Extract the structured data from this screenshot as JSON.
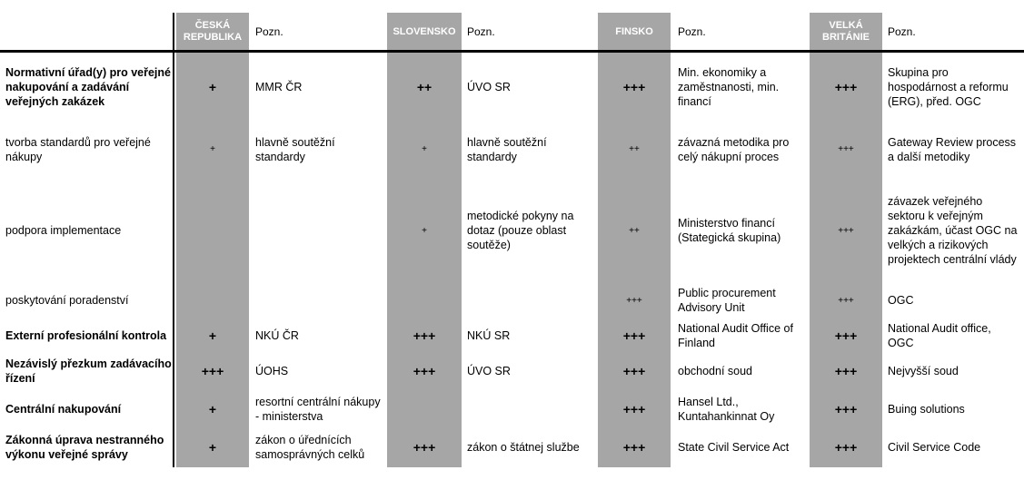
{
  "headers": {
    "countries": [
      "ČESKÁ REPUBLIKA",
      "SLOVENSKO",
      "FINSKO",
      "VELKÁ BRITÁNIE"
    ],
    "note": "Pozn."
  },
  "rows": [
    {
      "label": "Normativní úřad(y) pro veřejné nakupování a zadávání veřejných zakázek",
      "bold": true,
      "cells": [
        {
          "mark": "+",
          "note": "MMR ČR"
        },
        {
          "mark": "++",
          "note": "ÚVO SR"
        },
        {
          "mark": "+++",
          "note": "Min. ekonomiky a zaměstnanosti, min. financí"
        },
        {
          "mark": "+++",
          "note": "Skupina pro hospodárnost a reformu (ERG), před. OGC"
        }
      ]
    },
    {
      "label": "tvorba standardů pro veřejné nákupy",
      "bold": false,
      "cells": [
        {
          "mark": "+",
          "note": "hlavně soutěžní standardy"
        },
        {
          "mark": "+",
          "note": "hlavně soutěžní standardy"
        },
        {
          "mark": "++",
          "note": "závazná metodika pro celý nákupní proces"
        },
        {
          "mark": "+++",
          "note": "Gateway Review process a další metodiky"
        }
      ]
    },
    {
      "label": "podpora implementace",
      "bold": false,
      "cells": [
        {
          "mark": "",
          "note": ""
        },
        {
          "mark": "+",
          "note": "metodické pokyny na dotaz (pouze oblast soutěže)"
        },
        {
          "mark": "++",
          "note": "Ministerstvo financí (Stategická skupina)"
        },
        {
          "mark": "+++",
          "note": "závazek veřejného sektoru k veřejným zakázkám, účast OGC na velkých a rizikových projektech centrální vlády"
        }
      ]
    },
    {
      "label": "poskytování poradenství",
      "bold": false,
      "cells": [
        {
          "mark": "",
          "note": ""
        },
        {
          "mark": "",
          "note": ""
        },
        {
          "mark": "+++",
          "note": "Public procurement Advisory Unit"
        },
        {
          "mark": "+++",
          "note": "OGC"
        }
      ]
    },
    {
      "label": "Externí profesionální kontrola",
      "bold": true,
      "cells": [
        {
          "mark": "+",
          "note": "NKÚ ČR"
        },
        {
          "mark": "+++",
          "note": "NKÚ SR"
        },
        {
          "mark": "+++",
          "note": "National Audit Office of Finland"
        },
        {
          "mark": "+++",
          "note": "National Audit office, OGC"
        }
      ]
    },
    {
      "label": "Nezávislý přezkum zadávacího řízení",
      "bold": true,
      "cells": [
        {
          "mark": "+++",
          "note": "ÚOHS"
        },
        {
          "mark": "+++",
          "note": "ÚVO SR"
        },
        {
          "mark": "+++",
          "note": "obchodní soud"
        },
        {
          "mark": "+++",
          "note": "Nejvyšší soud"
        }
      ]
    },
    {
      "label": "Centrální nakupování",
      "bold": true,
      "cells": [
        {
          "mark": "+",
          "note": "resortní centrální nákupy - ministerstva"
        },
        {
          "mark": "",
          "note": ""
        },
        {
          "mark": "+++",
          "note": "Hansel Ltd., Kuntahankinnat Oy"
        },
        {
          "mark": "+++",
          "note": "Buing solutions"
        }
      ]
    },
    {
      "label": "Zákonná úprava nestranného výkonu veřejné správy",
      "bold": true,
      "cells": [
        {
          "mark": "+",
          "note": "zákon o úřednících samosprávných celků"
        },
        {
          "mark": "+++",
          "note": "zákon o štátnej službe"
        },
        {
          "mark": "+++",
          "note": "State Civil Service Act"
        },
        {
          "mark": "+++",
          "note": "Civil Service Code"
        }
      ]
    }
  ]
}
